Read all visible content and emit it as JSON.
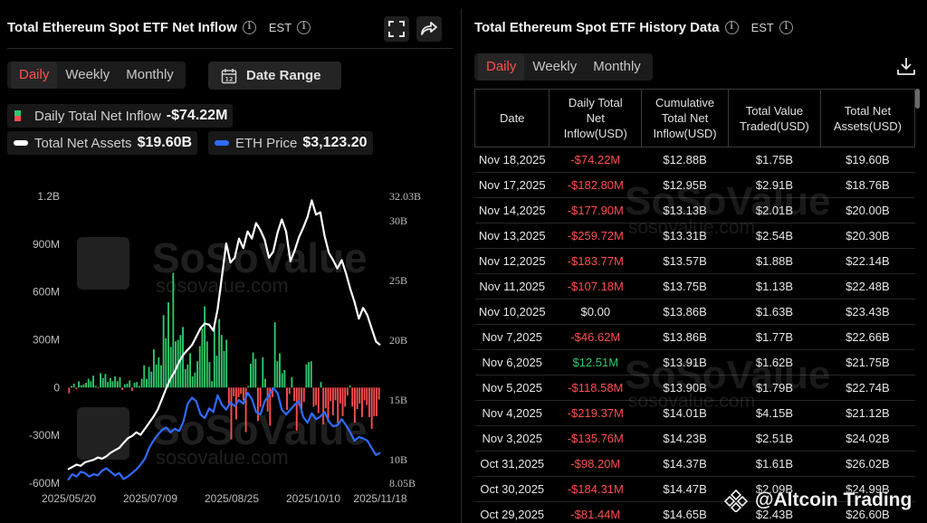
{
  "left_panel": {
    "title": "Total Ethereum Spot ETF Net Inflow",
    "timezone": "EST",
    "tabs": [
      "Daily",
      "Weekly",
      "Monthly"
    ],
    "active_tab": "Daily",
    "date_range_label": "Date Range",
    "legend": {
      "daily_label": "Daily Total Net Inflow",
      "daily_value": "-$74.22M",
      "assets_label": "Total Net Assets",
      "assets_value": "$19.60B",
      "price_label": "ETH Price",
      "price_value": "$3,123.20"
    }
  },
  "right_panel": {
    "title": "Total Ethereum Spot ETF History Data",
    "timezone": "EST",
    "tabs": [
      "Daily",
      "Weekly",
      "Monthly"
    ],
    "active_tab": "Daily",
    "columns": [
      "Date",
      "Daily Total Net Inflow(USD)",
      "Cumulative Total Net Inflow(USD)",
      "Total Value Traded(USD)",
      "Total Net Assets(USD)"
    ],
    "rows": [
      [
        "Nov 18,2025",
        "-$74.22M",
        "$12.88B",
        "$1.75B",
        "$19.60B"
      ],
      [
        "Nov 17,2025",
        "-$182.80M",
        "$12.95B",
        "$2.91B",
        "$18.76B"
      ],
      [
        "Nov 14,2025",
        "-$177.90M",
        "$13.13B",
        "$2.01B",
        "$20.00B"
      ],
      [
        "Nov 13,2025",
        "-$259.72M",
        "$13.31B",
        "$2.54B",
        "$20.30B"
      ],
      [
        "Nov 12,2025",
        "-$183.77M",
        "$13.57B",
        "$1.88B",
        "$22.14B"
      ],
      [
        "Nov 11,2025",
        "-$107.18M",
        "$13.75B",
        "$1.13B",
        "$22.48B"
      ],
      [
        "Nov 10,2025",
        "$0.00",
        "$13.86B",
        "$1.63B",
        "$23.43B"
      ],
      [
        "Nov 7,2025",
        "-$46.62M",
        "$13.86B",
        "$1.77B",
        "$22.66B"
      ],
      [
        "Nov 6,2025",
        "$12.51M",
        "$13.91B",
        "$1.62B",
        "$21.75B"
      ],
      [
        "Nov 5,2025",
        "-$118.58M",
        "$13.90B",
        "$1.79B",
        "$22.74B"
      ],
      [
        "Nov 4,2025",
        "-$219.37M",
        "$14.01B",
        "$4.15B",
        "$21.12B"
      ],
      [
        "Nov 3,2025",
        "-$135.76M",
        "$14.23B",
        "$2.51B",
        "$24.02B"
      ],
      [
        "Oct 31,2025",
        "-$98.20M",
        "$14.37B",
        "$1.61B",
        "$26.02B"
      ],
      [
        "Oct 30,2025",
        "-$184.31M",
        "$14.47B",
        "$2.09B",
        "$24.99B"
      ],
      [
        "Oct 29,2025",
        "-$81.44M",
        "$14.65B",
        "$2.43B",
        "$26.60B"
      ]
    ]
  },
  "watermarks": {
    "brand": "SoSoValue",
    "site": "sosovalue.com",
    "credit": "@Altcoin Trading"
  },
  "colors": {
    "inflow_positive": "#2fc86a",
    "inflow_negative": "#ff4d4f",
    "net_assets": "#ffffff",
    "eth_price": "#2f6bff",
    "accent_tab": "#ff4d4f"
  },
  "chart_data": {
    "type": "bar",
    "title": "Total Ethereum Spot ETF Net Inflow",
    "x_ticks": [
      "2025/05/20",
      "2025/07/09",
      "2025/08/25",
      "2025/10/10",
      "2025/11/18"
    ],
    "left_axis": {
      "ticks": [
        "1.2B",
        "900M",
        "600M",
        "300M",
        "0",
        "-300M",
        "-600M"
      ],
      "ylim": [
        -600,
        1200
      ],
      "unit": "M"
    },
    "right_axis": {
      "ticks": [
        "32.03B",
        "30B",
        "25B",
        "20B",
        "15B",
        "10B",
        "8.05B"
      ],
      "ylim": [
        8.05,
        32.03
      ],
      "unit": "B"
    },
    "grid": false,
    "series": [
      {
        "name": "Daily Total Net Inflow",
        "type": "bar",
        "axis": "left",
        "values": [
          -35,
          10,
          25,
          -10,
          40,
          15,
          20,
          30,
          55,
          40,
          75,
          10,
          -5,
          90,
          60,
          85,
          35,
          60,
          40,
          70,
          40,
          65,
          -15,
          20,
          25,
          45,
          -20,
          30,
          35,
          10,
          55,
          140,
          55,
          130,
          100,
          240,
          145,
          190,
          140,
          455,
          310,
          535,
          255,
          720,
          290,
          300,
          330,
          380,
          115,
          145,
          215,
          70,
          95,
          165,
          260,
          370,
          510,
          290,
          160,
          40,
          380,
          200,
          430,
          330,
          230,
          300,
          -115,
          -325,
          -55,
          -200,
          -60,
          -40,
          -80,
          -280,
          10,
          150,
          220,
          180,
          -210,
          -120,
          190,
          55,
          -150,
          -240,
          -60,
          410,
          165,
          215,
          90,
          110,
          -140,
          -40,
          65,
          -85,
          -270,
          -115,
          -160,
          -90,
          145,
          160,
          165,
          -120,
          -110,
          -160,
          35,
          -230,
          -130,
          -215,
          -85,
          -175,
          -80,
          -220,
          -100,
          -180,
          -120,
          -50,
          12,
          -120,
          -220,
          -135,
          -100,
          -185,
          -80,
          -110,
          -185,
          -260,
          -180,
          -180,
          -75
        ]
      },
      {
        "name": "Total Net Assets",
        "type": "line",
        "axis": "right",
        "values": [
          9.2,
          9.4,
          9.6,
          9.5,
          9.8,
          9.9,
          10.0,
          10.2,
          10.1,
          10.3,
          10.6,
          10.8,
          11.0,
          11.4,
          11.8,
          12.0,
          12.3,
          12.1,
          12.6,
          13.1,
          13.6,
          14.2,
          15.1,
          16.0,
          16.8,
          17.4,
          18.2,
          18.8,
          19.2,
          19.6,
          20.3,
          21.0,
          21.4,
          21.3,
          20.8,
          22.6,
          25.3,
          28.1,
          26.5,
          26.9,
          28.5,
          27.7,
          29.1,
          28.5,
          29.8,
          29.2,
          28.4,
          26.9,
          27.4,
          29.0,
          30.1,
          29.1,
          26.6,
          27.5,
          28.6,
          29.4,
          30.3,
          31.7,
          30.5,
          30.7,
          28.7,
          27.3,
          26.7,
          26.0,
          26.7,
          25.6,
          24.3,
          23.2,
          21.8,
          22.7,
          22.1,
          21.0,
          19.9,
          19.6
        ]
      },
      {
        "name": "ETH Price",
        "type": "line",
        "axis": "right",
        "values": [
          8.3,
          8.8,
          8.6,
          9.0,
          8.9,
          8.6,
          8.8,
          8.7,
          9.1,
          9.3,
          9.0,
          8.7,
          8.9,
          8.4,
          8.6,
          8.9,
          9.2,
          9.6,
          10.1,
          11.0,
          11.6,
          12.1,
          12.5,
          12.7,
          12.3,
          12.6,
          12.4,
          13.2,
          14.7,
          15.2,
          14.9,
          13.8,
          13.5,
          14.3,
          14.0,
          15.4,
          14.6,
          14.2,
          14.8,
          14.5,
          15.0,
          14.7,
          15.6,
          15.1,
          14.0,
          13.8,
          14.9,
          15.4,
          16.0,
          15.6,
          14.2,
          13.8,
          14.2,
          14.6,
          14.9,
          13.6,
          13.1,
          13.9,
          13.4,
          13.6,
          14.0,
          13.2,
          12.8,
          12.9,
          13.4,
          12.9,
          12.3,
          11.6,
          11.9,
          11.8,
          11.6,
          11.0,
          10.4,
          10.6
        ]
      }
    ]
  }
}
